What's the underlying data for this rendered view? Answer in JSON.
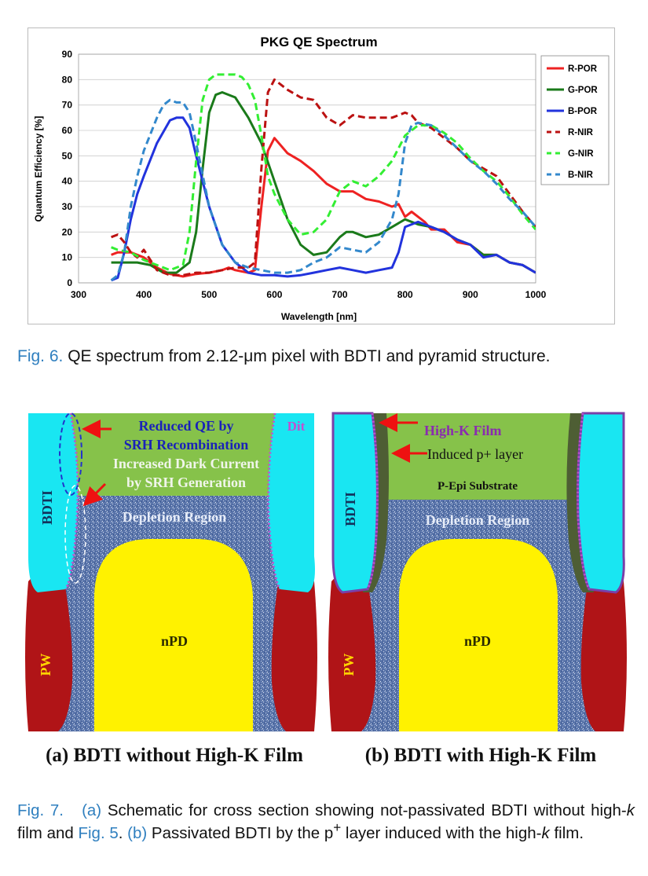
{
  "fig6": {
    "caption_label": "Fig. 6.",
    "caption_text": "QE spectrum from 2.12-μm pixel with BDTI and pyramid structure."
  },
  "chart_data": {
    "type": "line",
    "title": "PKG QE Spectrum",
    "xlabel": "Wavelength [nm]",
    "ylabel": "Quantum Efficiency [%]",
    "xlim": [
      300,
      1000
    ],
    "ylim": [
      0,
      90
    ],
    "xticks": [
      300,
      400,
      500,
      600,
      700,
      800,
      900,
      1000
    ],
    "yticks": [
      0,
      10,
      20,
      30,
      40,
      50,
      60,
      70,
      80,
      90
    ],
    "grid": "horizontal",
    "legend_position": "right",
    "series": [
      {
        "name": "R-POR",
        "color": "#ee2222",
        "dash": "solid",
        "x": [
          350,
          360,
          380,
          400,
          420,
          440,
          460,
          480,
          500,
          520,
          530,
          540,
          560,
          570,
          580,
          590,
          600,
          620,
          640,
          660,
          680,
          700,
          720,
          740,
          760,
          780,
          790,
          800,
          810,
          820,
          830,
          840,
          860,
          880,
          900,
          920,
          940,
          960,
          980,
          1000
        ],
        "y": [
          11,
          12,
          12,
          10,
          6,
          3.5,
          2.5,
          3.5,
          4,
          5,
          6,
          5,
          4,
          5,
          30,
          52,
          57,
          51,
          48,
          44,
          39,
          36,
          36,
          33,
          32,
          30,
          31,
          26,
          28,
          26,
          24,
          21,
          21,
          16,
          15,
          11,
          11,
          8,
          7,
          4
        ]
      },
      {
        "name": "G-POR",
        "color": "#1a7a1a",
        "dash": "solid",
        "x": [
          350,
          370,
          390,
          410,
          430,
          450,
          470,
          480,
          490,
          500,
          510,
          520,
          540,
          560,
          580,
          600,
          620,
          640,
          660,
          680,
          700,
          710,
          720,
          740,
          760,
          780,
          800,
          820,
          840,
          860,
          880,
          900,
          920,
          940,
          960,
          980,
          1000
        ],
        "y": [
          8,
          8,
          8,
          7,
          4,
          4,
          8,
          20,
          45,
          67,
          74,
          75,
          73,
          65,
          55,
          40,
          25,
          15,
          11,
          12,
          18,
          20,
          20,
          18,
          19,
          22,
          25,
          23,
          22,
          20,
          17,
          15,
          11,
          11,
          8,
          7,
          4
        ]
      },
      {
        "name": "B-POR",
        "color": "#2233dd",
        "dash": "solid",
        "x": [
          350,
          360,
          370,
          380,
          390,
          400,
          420,
          440,
          450,
          460,
          470,
          480,
          500,
          520,
          540,
          560,
          580,
          600,
          620,
          640,
          660,
          680,
          700,
          720,
          740,
          760,
          780,
          790,
          800,
          820,
          840,
          860,
          880,
          900,
          920,
          940,
          960,
          980,
          1000
        ],
        "y": [
          1,
          2,
          12,
          25,
          35,
          42,
          55,
          64,
          65,
          65,
          61,
          50,
          30,
          15,
          8,
          4,
          3,
          3,
          2.5,
          3,
          4,
          5,
          6,
          5,
          4,
          5,
          6,
          12,
          22,
          24,
          22,
          20,
          17,
          15,
          10,
          11,
          8,
          7,
          4
        ]
      },
      {
        "name": "R-NIR",
        "color": "#bb1111",
        "dash": "dashed",
        "x": [
          350,
          360,
          370,
          380,
          390,
          400,
          420,
          440,
          460,
          480,
          500,
          520,
          540,
          560,
          570,
          580,
          590,
          600,
          610,
          620,
          640,
          660,
          680,
          700,
          720,
          740,
          760,
          780,
          800,
          810,
          820,
          840,
          860,
          880,
          900,
          920,
          940,
          960,
          980,
          1000
        ],
        "y": [
          18,
          19,
          16,
          12,
          10,
          13,
          5,
          3,
          3,
          4,
          4,
          5,
          6,
          6,
          8,
          45,
          75,
          80,
          78,
          76,
          73,
          72,
          65,
          62,
          66,
          65,
          65,
          65,
          67,
          66,
          63,
          61,
          57,
          53,
          48,
          45,
          42,
          35,
          28,
          22
        ]
      },
      {
        "name": "G-NIR",
        "color": "#33ee33",
        "dash": "dashed",
        "x": [
          350,
          360,
          380,
          400,
          420,
          440,
          460,
          470,
          480,
          490,
          500,
          510,
          520,
          540,
          550,
          560,
          570,
          580,
          590,
          600,
          620,
          640,
          660,
          680,
          700,
          720,
          740,
          760,
          780,
          800,
          820,
          840,
          860,
          880,
          900,
          920,
          940,
          960,
          980,
          1000
        ],
        "y": [
          14,
          13,
          12,
          9,
          7,
          5,
          7,
          20,
          48,
          72,
          80,
          82,
          82,
          82,
          81,
          78,
          72,
          58,
          42,
          35,
          25,
          19,
          20,
          25,
          36,
          40,
          38,
          42,
          48,
          58,
          62,
          62,
          59,
          55,
          49,
          44,
          40,
          34,
          27,
          21
        ]
      },
      {
        "name": "B-NIR",
        "color": "#3388cc",
        "dash": "dashed",
        "x": [
          350,
          360,
          370,
          380,
          390,
          400,
          420,
          430,
          440,
          450,
          460,
          470,
          480,
          500,
          520,
          540,
          560,
          580,
          600,
          620,
          640,
          660,
          680,
          700,
          720,
          740,
          760,
          780,
          790,
          800,
          810,
          820,
          840,
          860,
          880,
          900,
          920,
          940,
          960,
          980,
          1000
        ],
        "y": [
          1,
          3,
          12,
          30,
          42,
          52,
          65,
          70,
          72,
          71,
          71,
          67,
          55,
          30,
          15,
          8,
          6,
          5,
          4,
          4,
          5,
          8,
          10,
          14,
          13,
          12,
          16,
          25,
          35,
          55,
          62,
          63,
          62,
          58,
          53,
          48,
          44,
          39,
          33,
          28,
          22
        ]
      }
    ]
  },
  "fig7": {
    "panel_a": {
      "sublabel": "(a) BDTI without High-K Film",
      "reduced_qe": "Reduced QE by",
      "srh_recomb": "SRH Recombination",
      "inc_dark": "Increased Dark Current",
      "srh_gen": "by SRH Generation",
      "dit": "Dit",
      "bdti": "BDTI",
      "depletion": "Depletion Region",
      "npd": "nPD",
      "pw": "PW"
    },
    "panel_b": {
      "sublabel": "(b) BDTI with High-K Film",
      "highk": "High-K Film",
      "induced": "Induced p+ layer",
      "pepi": "P-Epi Substrate",
      "bdti": "BDTI",
      "depletion": "Depletion Region",
      "npd": "nPD",
      "pw": "PW"
    },
    "caption_label": "Fig. 7.",
    "caption_a": "(a)",
    "caption_t1": "Schematic for cross section showing not-passivated BDTI without high-",
    "caption_k1": "k",
    "caption_t2": " film and ",
    "caption_fig5": "Fig. 5",
    "caption_t3": ". ",
    "caption_b": "(b)",
    "caption_t4": " Passivated BDTI by the p",
    "caption_sup": "+",
    "caption_t5": " layer induced with the high-",
    "caption_k2": "k",
    "caption_t6": " film."
  }
}
